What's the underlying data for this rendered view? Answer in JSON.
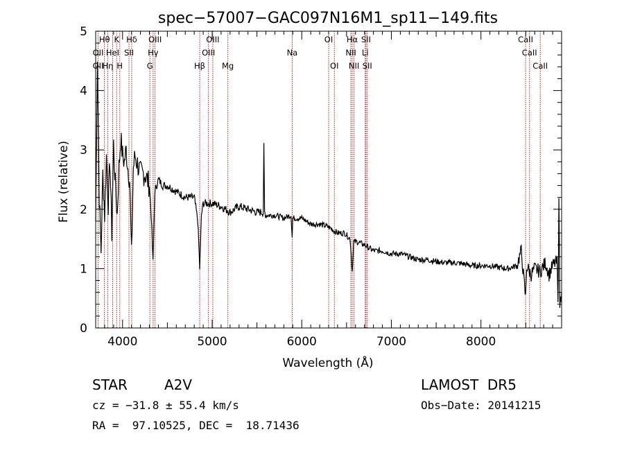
{
  "chart_data": {
    "type": "line",
    "title": "spec−57007−GAC097N16M1_sp11−149.fits",
    "xlabel": "Wavelength (Å)",
    "ylabel": "Flux (relative)",
    "xlim": [
      3700,
      8900
    ],
    "ylim": [
      0,
      5
    ],
    "xticks": [
      4000,
      5000,
      6000,
      7000,
      8000
    ],
    "yticks": [
      0,
      1,
      2,
      3,
      4,
      5
    ],
    "grid": false,
    "line_color": "#000000",
    "marker_color": "#b22222",
    "spectral_lines": [
      {
        "label": "OII",
        "wavelength": 3727,
        "row": 2
      },
      {
        "label": "Hθ",
        "wavelength": 3798,
        "row": 0
      },
      {
        "label": "Hη",
        "wavelength": 3835,
        "row": 2
      },
      {
        "label": "OII",
        "wavelength": 3727,
        "row": 1
      },
      {
        "label": "HeI",
        "wavelength": 3889,
        "row": 1
      },
      {
        "label": "K",
        "wavelength": 3934,
        "row": 0
      },
      {
        "label": "H",
        "wavelength": 3969,
        "row": 2
      },
      {
        "label": "Hδ",
        "wavelength": 4102,
        "row": 0
      },
      {
        "label": "SII",
        "wavelength": 4072,
        "row": 1
      },
      {
        "label": "OIII",
        "wavelength": 4363,
        "row": 0
      },
      {
        "label": "Hγ",
        "wavelength": 4341,
        "row": 1
      },
      {
        "label": "G",
        "wavelength": 4305,
        "row": 2
      },
      {
        "label": "Hβ",
        "wavelength": 4861,
        "row": 2
      },
      {
        "label": "OIII",
        "wavelength": 5007,
        "row": 0
      },
      {
        "label": "OIII",
        "wavelength": 4959,
        "row": 1
      },
      {
        "label": "Mg",
        "wavelength": 5175,
        "row": 2
      },
      {
        "label": "Na",
        "wavelength": 5893,
        "row": 1
      },
      {
        "label": "OI",
        "wavelength": 6300,
        "row": 0
      },
      {
        "label": "OI",
        "wavelength": 6364,
        "row": 2
      },
      {
        "label": "Hα",
        "wavelength": 6563,
        "row": 0
      },
      {
        "label": "NII",
        "wavelength": 6548,
        "row": 1
      },
      {
        "label": "NII",
        "wavelength": 6583,
        "row": 2
      },
      {
        "label": "SII",
        "wavelength": 6717,
        "row": 0
      },
      {
        "label": "Li",
        "wavelength": 6708,
        "row": 1
      },
      {
        "label": "SII",
        "wavelength": 6731,
        "row": 2
      },
      {
        "label": "CaII",
        "wavelength": 8498,
        "row": 0
      },
      {
        "label": "CaII",
        "wavelength": 8542,
        "row": 1
      },
      {
        "label": "CaII",
        "wavelength": 8662,
        "row": 2
      }
    ],
    "series": [
      {
        "x": [
          3700,
          3720,
          3740,
          3760,
          3780,
          3800,
          3820,
          3840,
          3860,
          3880,
          3900,
          3920,
          3940,
          3960,
          3980,
          4000,
          4020,
          4040,
          4060,
          4080,
          4100,
          4120,
          4140,
          4160,
          4180,
          4200,
          4250,
          4300,
          4320,
          4340,
          4360,
          4400,
          4450,
          4500,
          4600,
          4700,
          4800,
          4840,
          4861,
          4880,
          4900,
          5000,
          5100,
          5200,
          5300,
          5400,
          5500,
          5570,
          5577,
          5585,
          5600,
          5700,
          5800,
          5880,
          5893,
          5900,
          6000,
          6100,
          6200,
          6300,
          6400,
          6480,
          6540,
          6563,
          6580,
          6620,
          6700,
          6800,
          6900,
          7000,
          7100,
          7200,
          7300,
          7400,
          7500,
          7600,
          7700,
          7800,
          7900,
          8000,
          8100,
          8200,
          8300,
          8400,
          8450,
          8480,
          8498,
          8510,
          8542,
          8560,
          8600,
          8662,
          8680,
          8720,
          8760,
          8800,
          8830,
          8850,
          8860,
          8870,
          8880,
          8900
        ],
        "y": [
          1.8,
          4.6,
          2.2,
          1.3,
          2.6,
          1.9,
          2.9,
          2.1,
          2.8,
          1.6,
          3.1,
          2.4,
          1.9,
          2.7,
          3.2,
          2.9,
          2.8,
          3.0,
          2.7,
          2.5,
          1.2,
          2.7,
          2.9,
          2.8,
          2.7,
          2.6,
          2.6,
          2.4,
          1.9,
          1.1,
          2.3,
          2.5,
          2.4,
          2.4,
          2.3,
          2.2,
          2.2,
          1.8,
          1.0,
          1.9,
          2.1,
          2.1,
          2.05,
          1.95,
          2.05,
          2.0,
          1.95,
          1.95,
          3.05,
          1.95,
          1.9,
          1.9,
          1.85,
          1.9,
          1.55,
          1.85,
          1.85,
          1.75,
          1.75,
          1.7,
          1.6,
          1.6,
          1.5,
          0.95,
          1.45,
          1.45,
          1.4,
          1.3,
          1.3,
          1.25,
          1.25,
          1.2,
          1.15,
          1.15,
          1.12,
          1.1,
          1.1,
          1.08,
          1.05,
          1.05,
          1.05,
          1.02,
          1.0,
          1.05,
          1.3,
          0.8,
          0.5,
          1.05,
          0.95,
          0.9,
          1.0,
          0.95,
          1.0,
          1.1,
          0.9,
          1.05,
          1.1,
          1.1,
          0.35,
          2.3,
          0.4,
          0.6
        ]
      }
    ]
  },
  "info": {
    "object_class": "STAR",
    "subclass": "A2V",
    "survey": "LAMOST  DR5",
    "velocity": "cz = −31.8 ± 55.4 km/s",
    "obs_date": "Obs−Date: 20141215",
    "coordinates": "RA =  97.10525, DEC =  18.71436"
  }
}
